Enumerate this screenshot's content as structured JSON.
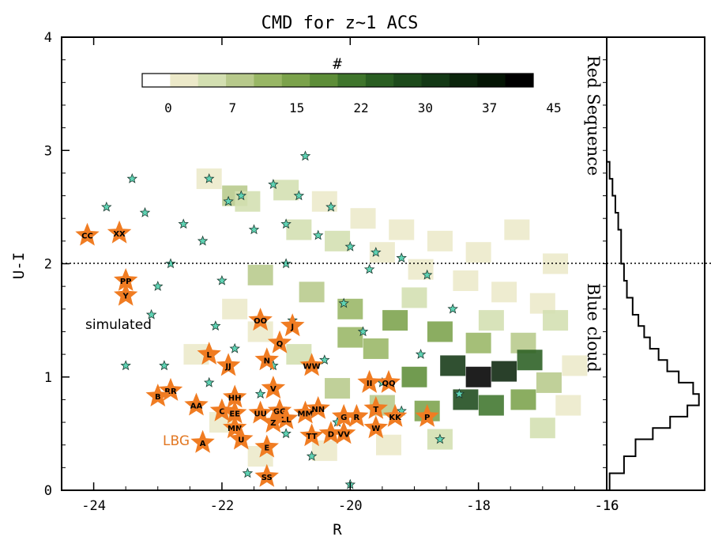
{
  "chart_data": [
    {
      "type": "heatmap",
      "title": "CMD for z~1 ACS",
      "xlabel": "R",
      "ylabel": "U-I",
      "xlim": [
        -24.5,
        -16
      ],
      "ylim": [
        0,
        4
      ],
      "xticks": [
        "-24",
        "-22",
        "-20",
        "-18",
        "-16"
      ],
      "yticks": [
        "0",
        "1",
        "2",
        "3",
        "4"
      ],
      "divider_u_i": 2.0,
      "colorbar": {
        "label": "#",
        "ticks": [
          "0",
          "7",
          "15",
          "22",
          "30",
          "37",
          "45"
        ],
        "range": [
          0,
          45
        ],
        "colors": [
          "#ffffff",
          "#ece9c9",
          "#d3dfb1",
          "#b7c98b",
          "#98b665",
          "#7ba24b",
          "#5d8d38",
          "#3f752c",
          "#2a5e22",
          "#1d4a1b",
          "#133815",
          "#0b250c",
          "#041404",
          "#000000"
        ]
      },
      "density_cells": [
        {
          "r": -22.2,
          "ui": 2.75,
          "n": 4
        },
        {
          "r": -21.8,
          "ui": 2.6,
          "n": 12
        },
        {
          "r": -21.6,
          "ui": 2.55,
          "n": 8
        },
        {
          "r": -21.0,
          "ui": 2.65,
          "n": 6
        },
        {
          "r": -20.4,
          "ui": 2.55,
          "n": 5
        },
        {
          "r": -19.8,
          "ui": 2.4,
          "n": 4
        },
        {
          "r": -19.2,
          "ui": 2.3,
          "n": 3
        },
        {
          "r": -18.6,
          "ui": 2.2,
          "n": 3
        },
        {
          "r": -18.0,
          "ui": 2.1,
          "n": 2
        },
        {
          "r": -20.8,
          "ui": 2.3,
          "n": 7
        },
        {
          "r": -20.2,
          "ui": 2.2,
          "n": 6
        },
        {
          "r": -19.5,
          "ui": 2.1,
          "n": 5
        },
        {
          "r": -18.9,
          "ui": 1.95,
          "n": 5
        },
        {
          "r": -18.2,
          "ui": 1.85,
          "n": 4
        },
        {
          "r": -17.6,
          "ui": 1.75,
          "n": 3
        },
        {
          "r": -17.0,
          "ui": 1.65,
          "n": 2
        },
        {
          "r": -21.4,
          "ui": 1.9,
          "n": 9
        },
        {
          "r": -20.6,
          "ui": 1.75,
          "n": 11
        },
        {
          "r": -20.0,
          "ui": 1.6,
          "n": 14
        },
        {
          "r": -19.3,
          "ui": 1.5,
          "n": 16
        },
        {
          "r": -18.6,
          "ui": 1.4,
          "n": 18
        },
        {
          "r": -18.0,
          "ui": 1.3,
          "n": 14
        },
        {
          "r": -17.3,
          "ui": 1.3,
          "n": 10
        },
        {
          "r": -16.8,
          "ui": 1.5,
          "n": 6
        },
        {
          "r": -19.0,
          "ui": 1.0,
          "n": 22
        },
        {
          "r": -18.4,
          "ui": 1.1,
          "n": 34
        },
        {
          "r": -18.0,
          "ui": 1.0,
          "n": 45
        },
        {
          "r": -17.6,
          "ui": 1.05,
          "n": 38
        },
        {
          "r": -17.2,
          "ui": 1.15,
          "n": 26
        },
        {
          "r": -18.2,
          "ui": 0.8,
          "n": 30
        },
        {
          "r": -17.8,
          "ui": 0.75,
          "n": 24
        },
        {
          "r": -17.3,
          "ui": 0.8,
          "n": 18
        },
        {
          "r": -16.9,
          "ui": 0.95,
          "n": 12
        },
        {
          "r": -18.8,
          "ui": 0.7,
          "n": 16
        },
        {
          "r": -19.5,
          "ui": 0.75,
          "n": 12
        },
        {
          "r": -20.2,
          "ui": 0.9,
          "n": 10
        },
        {
          "r": -20.8,
          "ui": 1.2,
          "n": 8
        },
        {
          "r": -21.4,
          "ui": 1.4,
          "n": 5
        },
        {
          "r": -18.6,
          "ui": 0.45,
          "n": 8
        },
        {
          "r": -19.4,
          "ui": 0.4,
          "n": 5
        },
        {
          "r": -20.4,
          "ui": 0.35,
          "n": 4
        },
        {
          "r": -21.4,
          "ui": 0.3,
          "n": 3
        },
        {
          "r": -22.0,
          "ui": 0.6,
          "n": 2
        },
        {
          "r": -17.0,
          "ui": 0.55,
          "n": 6
        },
        {
          "r": -16.6,
          "ui": 0.75,
          "n": 4
        },
        {
          "r": -16.5,
          "ui": 1.1,
          "n": 3
        },
        {
          "r": -17.8,
          "ui": 1.5,
          "n": 7
        },
        {
          "r": -19.6,
          "ui": 1.25,
          "n": 15
        },
        {
          "r": -20.0,
          "ui": 1.35,
          "n": 13
        },
        {
          "r": -19.0,
          "ui": 1.7,
          "n": 6
        },
        {
          "r": -17.4,
          "ui": 2.3,
          "n": 2
        },
        {
          "r": -16.8,
          "ui": 2.0,
          "n": 2
        },
        {
          "r": -21.8,
          "ui": 1.6,
          "n": 4
        },
        {
          "r": -22.4,
          "ui": 1.2,
          "n": 2
        }
      ],
      "simulated_points": [
        {
          "r": -23.8,
          "ui": 2.5
        },
        {
          "r": -23.4,
          "ui": 2.75
        },
        {
          "r": -23.6,
          "ui": 2.25
        },
        {
          "r": -23.2,
          "ui": 2.45
        },
        {
          "r": -22.2,
          "ui": 2.75
        },
        {
          "r": -20.7,
          "ui": 2.95
        },
        {
          "r": -21.9,
          "ui": 2.55
        },
        {
          "r": -21.7,
          "ui": 2.6
        },
        {
          "r": -21.2,
          "ui": 2.7
        },
        {
          "r": -20.8,
          "ui": 2.6
        },
        {
          "r": -20.3,
          "ui": 2.5
        },
        {
          "r": -22.6,
          "ui": 2.35
        },
        {
          "r": -22.3,
          "ui": 2.2
        },
        {
          "r": -21.5,
          "ui": 2.3
        },
        {
          "r": -21.0,
          "ui": 2.35
        },
        {
          "r": -20.5,
          "ui": 2.25
        },
        {
          "r": -20.0,
          "ui": 2.15
        },
        {
          "r": -19.6,
          "ui": 2.1
        },
        {
          "r": -19.2,
          "ui": 2.05
        },
        {
          "r": -22.8,
          "ui": 2.0
        },
        {
          "r": -23.0,
          "ui": 1.8
        },
        {
          "r": -23.1,
          "ui": 1.55
        },
        {
          "r": -23.5,
          "ui": 1.1
        },
        {
          "r": -22.9,
          "ui": 1.1
        },
        {
          "r": -21.0,
          "ui": 2.0
        },
        {
          "r": -19.7,
          "ui": 1.95
        },
        {
          "r": -18.8,
          "ui": 1.9
        },
        {
          "r": -18.4,
          "ui": 1.6
        },
        {
          "r": -18.6,
          "ui": 0.45
        },
        {
          "r": -18.3,
          "ui": 0.85
        },
        {
          "r": -22.0,
          "ui": 1.85
        },
        {
          "r": -21.2,
          "ui": 1.1
        },
        {
          "r": -20.4,
          "ui": 1.15
        },
        {
          "r": -19.8,
          "ui": 1.4
        },
        {
          "r": -19.2,
          "ui": 0.7
        },
        {
          "r": -20.6,
          "ui": 0.3
        },
        {
          "r": -21.6,
          "ui": 0.15
        },
        {
          "r": -20.0,
          "ui": 0.05
        },
        {
          "r": -21.0,
          "ui": 0.5
        },
        {
          "r": -22.2,
          "ui": 0.95
        },
        {
          "r": -21.4,
          "ui": 0.85
        },
        {
          "r": -20.2,
          "ui": 0.6
        },
        {
          "r": -19.5,
          "ui": 0.95
        },
        {
          "r": -18.9,
          "ui": 1.2
        },
        {
          "r": -22.1,
          "ui": 1.45
        },
        {
          "r": -21.8,
          "ui": 1.25
        },
        {
          "r": -20.9,
          "ui": 1.5
        },
        {
          "r": -20.1,
          "ui": 1.65
        }
      ],
      "named_galaxies": [
        {
          "label": "CC",
          "r": -24.1,
          "ui": 2.25
        },
        {
          "label": "XX",
          "r": -23.6,
          "ui": 2.27
        },
        {
          "label": "PP",
          "r": -23.5,
          "ui": 1.85
        },
        {
          "label": "Y",
          "r": -23.5,
          "ui": 1.72
        },
        {
          "label": "OO",
          "r": -21.4,
          "ui": 1.5
        },
        {
          "label": "J",
          "r": -20.9,
          "ui": 1.45
        },
        {
          "label": "Q",
          "r": -21.1,
          "ui": 1.3
        },
        {
          "label": "L",
          "r": -22.2,
          "ui": 1.2
        },
        {
          "label": "JJ",
          "r": -21.9,
          "ui": 1.1
        },
        {
          "label": "N",
          "r": -21.3,
          "ui": 1.15
        },
        {
          "label": "WW",
          "r": -20.6,
          "ui": 1.1
        },
        {
          "label": "V",
          "r": -21.2,
          "ui": 0.9
        },
        {
          "label": "II",
          "r": -19.7,
          "ui": 0.95
        },
        {
          "label": "QQ",
          "r": -19.4,
          "ui": 0.95
        },
        {
          "label": "RR",
          "r": -22.8,
          "ui": 0.88
        },
        {
          "label": "B",
          "r": -23.0,
          "ui": 0.83
        },
        {
          "label": "AA",
          "r": -22.4,
          "ui": 0.75
        },
        {
          "label": "HH",
          "r": -21.8,
          "ui": 0.82
        },
        {
          "label": "C",
          "r": -22.0,
          "ui": 0.7
        },
        {
          "label": "EE",
          "r": -21.8,
          "ui": 0.68
        },
        {
          "label": "UU",
          "r": -21.4,
          "ui": 0.68
        },
        {
          "label": "GG",
          "r": -21.1,
          "ui": 0.7
        },
        {
          "label": "LL",
          "r": -21.0,
          "ui": 0.63
        },
        {
          "label": "MM",
          "r": -20.7,
          "ui": 0.68
        },
        {
          "label": "NN",
          "r": -20.5,
          "ui": 0.72
        },
        {
          "label": "Z",
          "r": -21.2,
          "ui": 0.6
        },
        {
          "label": "G",
          "r": -20.1,
          "ui": 0.65
        },
        {
          "label": "R",
          "r": -19.9,
          "ui": 0.65
        },
        {
          "label": "T",
          "r": -19.6,
          "ui": 0.72
        },
        {
          "label": "KK",
          "r": -19.3,
          "ui": 0.65
        },
        {
          "label": "P",
          "r": -18.8,
          "ui": 0.65
        },
        {
          "label": "W",
          "r": -19.6,
          "ui": 0.55
        },
        {
          "label": "MN",
          "r": -21.8,
          "ui": 0.55
        },
        {
          "label": "D",
          "r": -20.3,
          "ui": 0.5
        },
        {
          "label": "VV",
          "r": -20.1,
          "ui": 0.5
        },
        {
          "label": "TT",
          "r": -20.6,
          "ui": 0.48
        },
        {
          "label": "A",
          "r": -22.3,
          "ui": 0.42
        },
        {
          "label": "U",
          "r": -21.7,
          "ui": 0.45
        },
        {
          "label": "E",
          "r": -21.3,
          "ui": 0.38
        },
        {
          "label": "SS",
          "r": -21.3,
          "ui": 0.12
        }
      ],
      "annotations": {
        "simulated_label": "simulated",
        "lbg_label": "LBG",
        "red_sequence": "Red Sequence",
        "blue_cloud": "Blue cloud"
      },
      "colors": {
        "simulated_fill": "#5fd3b4",
        "lbg_star": "#f07c22",
        "lbg_text": "#e27722"
      }
    },
    {
      "type": "line",
      "title": "",
      "xlim": [
        -16,
        -14.3
      ],
      "xticks": [
        "-16"
      ],
      "ylim": [
        0,
        4
      ],
      "histogram_step": [
        {
          "ui": 0.0,
          "x": -16.0
        },
        {
          "ui": 0.15,
          "x": -15.95
        },
        {
          "ui": 0.3,
          "x": -15.7
        },
        {
          "ui": 0.45,
          "x": -15.5
        },
        {
          "ui": 0.55,
          "x": -15.2
        },
        {
          "ui": 0.65,
          "x": -14.9
        },
        {
          "ui": 0.75,
          "x": -14.6
        },
        {
          "ui": 0.85,
          "x": -14.4
        },
        {
          "ui": 0.95,
          "x": -14.5
        },
        {
          "ui": 1.05,
          "x": -14.75
        },
        {
          "ui": 1.15,
          "x": -14.95
        },
        {
          "ui": 1.25,
          "x": -15.1
        },
        {
          "ui": 1.35,
          "x": -15.25
        },
        {
          "ui": 1.45,
          "x": -15.35
        },
        {
          "ui": 1.55,
          "x": -15.45
        },
        {
          "ui": 1.7,
          "x": -15.55
        },
        {
          "ui": 1.85,
          "x": -15.65
        },
        {
          "ui": 2.0,
          "x": -15.7
        },
        {
          "ui": 2.15,
          "x": -15.75
        },
        {
          "ui": 2.3,
          "x": -15.75
        },
        {
          "ui": 2.45,
          "x": -15.8
        },
        {
          "ui": 2.6,
          "x": -15.85
        },
        {
          "ui": 2.75,
          "x": -15.9
        },
        {
          "ui": 2.9,
          "x": -15.95
        },
        {
          "ui": 3.05,
          "x": -16.0
        }
      ]
    }
  ]
}
